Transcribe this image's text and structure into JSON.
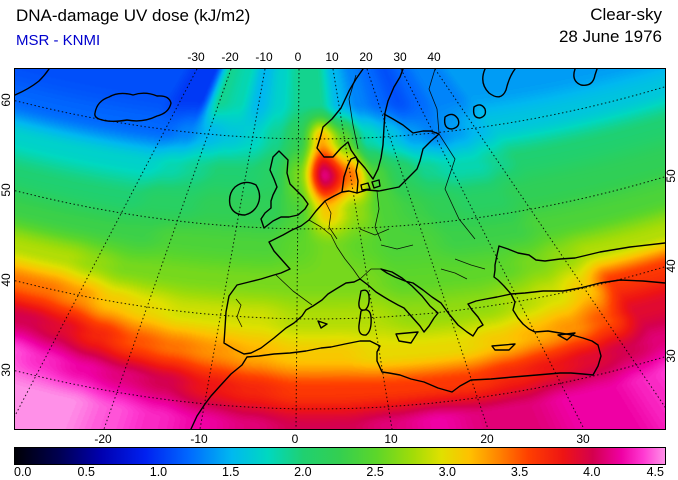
{
  "header": {
    "title": "DNA-damage UV dose (kJ/m2)",
    "source": "MSR - KNMI",
    "condition": "Clear-sky",
    "date": "28 June 1976"
  },
  "colors": {
    "source_text": "#0000cd",
    "map_outline": "#000000"
  },
  "axes": {
    "top_ticks": [
      -30,
      -20,
      -10,
      0,
      10,
      20,
      30,
      40
    ],
    "bottom_ticks": [
      -20,
      -10,
      0,
      10,
      20,
      30
    ],
    "left_ticks": [
      60,
      50,
      40,
      30
    ],
    "right_ticks": [
      50,
      40,
      30
    ]
  },
  "colorbar": {
    "min": 0,
    "max": 4.5,
    "tick_labels": [
      "0.0",
      "0.5",
      "1.0",
      "1.5",
      "2.0",
      "2.5",
      "3.0",
      "3.5",
      "4.0",
      "4.5"
    ]
  },
  "chart_data": {
    "type": "heatmap",
    "title": "DNA-damage UV dose (kJ/m2)",
    "units": "kJ/m2",
    "sky": "Clear-sky",
    "date": "28 June 1976",
    "source": "MSR - KNMI",
    "projection": "conic over Europe and North Atlantic",
    "value_range": [
      0,
      4.5
    ],
    "lons": [
      -35,
      -30,
      -25,
      -20,
      -15,
      -10,
      -5,
      0,
      5,
      10,
      15,
      20,
      25,
      30,
      35,
      40,
      45
    ],
    "lats": [
      64,
      60,
      56,
      52,
      48,
      44,
      40,
      36,
      32,
      28
    ],
    "values": [
      [
        1.1,
        1.0,
        1.0,
        1.9,
        1.8,
        1.5,
        1.7,
        1.9,
        1.9,
        1.5,
        1.3,
        1.2,
        1.1,
        1.2,
        1.3,
        1.3,
        1.4
      ],
      [
        1.2,
        1.2,
        1.3,
        1.5,
        1.6,
        1.7,
        1.9,
        2.2,
        3.2,
        2.5,
        1.8,
        1.6,
        1.4,
        1.3,
        1.4,
        1.5,
        1.6
      ],
      [
        1.7,
        1.7,
        1.8,
        1.9,
        2.0,
        2.0,
        2.1,
        2.6,
        4.1,
        3.4,
        2.4,
        2.1,
        1.9,
        1.8,
        1.8,
        1.9,
        2.0
      ],
      [
        2.0,
        2.0,
        2.1,
        2.1,
        2.2,
        2.2,
        2.2,
        2.4,
        3.1,
        2.7,
        2.4,
        2.3,
        2.2,
        2.1,
        2.1,
        2.2,
        2.2
      ],
      [
        2.3,
        2.3,
        2.3,
        2.4,
        2.4,
        2.4,
        2.4,
        2.5,
        2.6,
        2.5,
        2.4,
        2.4,
        2.3,
        2.3,
        2.3,
        2.4,
        2.4
      ],
      [
        2.8,
        2.7,
        2.6,
        2.6,
        2.6,
        2.6,
        2.6,
        2.6,
        2.6,
        2.6,
        2.5,
        2.5,
        2.5,
        2.5,
        2.6,
        2.7,
        2.8
      ],
      [
        3.4,
        3.3,
        3.1,
        3.0,
        2.9,
        2.9,
        2.9,
        2.8,
        2.8,
        2.8,
        2.7,
        2.7,
        2.7,
        2.8,
        2.9,
        3.1,
        3.6
      ],
      [
        4.0,
        3.9,
        3.7,
        3.5,
        3.4,
        3.3,
        3.2,
        3.1,
        3.1,
        3.0,
        3.0,
        3.0,
        3.1,
        3.2,
        3.3,
        3.5,
        3.9
      ],
      [
        4.4,
        4.3,
        4.2,
        4.1,
        4.0,
        3.8,
        3.7,
        3.6,
        3.6,
        3.6,
        3.6,
        3.6,
        3.7,
        3.8,
        3.9,
        4.0,
        4.1
      ],
      [
        4.5,
        4.5,
        4.5,
        4.4,
        4.3,
        4.2,
        4.1,
        4.0,
        4.0,
        4.1,
        4.2,
        4.1,
        4.1,
        4.2,
        4.2,
        4.3,
        4.4
      ]
    ],
    "palette": [
      [
        0.0,
        "#000006"
      ],
      [
        0.3,
        "#000050"
      ],
      [
        0.6,
        "#0000b0"
      ],
      [
        0.9,
        "#0020f0"
      ],
      [
        1.2,
        "#0068ff"
      ],
      [
        1.5,
        "#00b8f0"
      ],
      [
        1.75,
        "#00d8c0"
      ],
      [
        2.0,
        "#20d070"
      ],
      [
        2.25,
        "#34cf50"
      ],
      [
        2.5,
        "#5cd62a"
      ],
      [
        2.75,
        "#a0dc08"
      ],
      [
        2.95,
        "#e0e000"
      ],
      [
        3.15,
        "#ffc000"
      ],
      [
        3.35,
        "#ff8400"
      ],
      [
        3.55,
        "#ff4000"
      ],
      [
        3.8,
        "#ee1414"
      ],
      [
        4.0,
        "#d4004e"
      ],
      [
        4.2,
        "#ef00a4"
      ],
      [
        4.35,
        "#ff3ad2"
      ],
      [
        4.5,
        "#ff90e8"
      ]
    ]
  }
}
